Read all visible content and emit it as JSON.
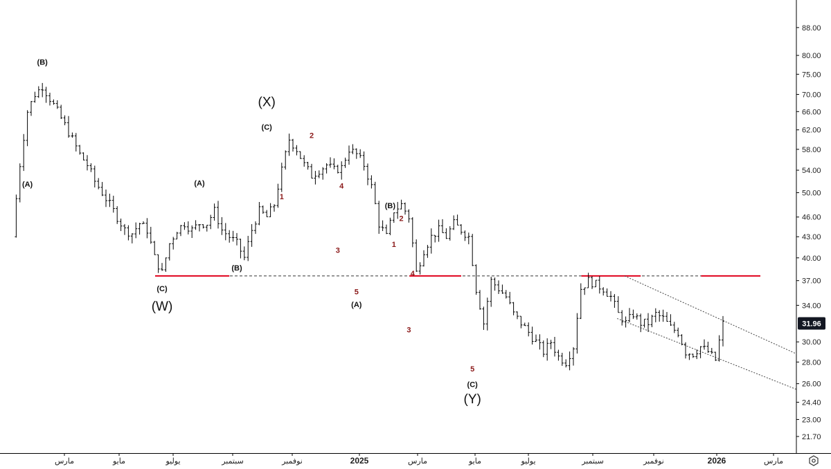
{
  "chart_data": {
    "type": "ohlc",
    "y_scale": "log",
    "ylim": [
      20.5,
      94
    ],
    "y_ticks": [
      "88.00",
      "80.00",
      "75.00",
      "70.00",
      "66.00",
      "62.00",
      "58.00",
      "54.00",
      "50.00",
      "46.00",
      "43.00",
      "40.00",
      "37.00",
      "34.00",
      "30.00",
      "28.00",
      "26.00",
      "24.40",
      "23.00",
      "21.70"
    ],
    "x_ticks": [
      {
        "label": "مارس",
        "bold": false
      },
      {
        "label": "مايو",
        "bold": false
      },
      {
        "label": "يوليو",
        "bold": false
      },
      {
        "label": "سبتمبر",
        "bold": false
      },
      {
        "label": "نوفمبر",
        "bold": false
      },
      {
        "label": "2025",
        "bold": true
      },
      {
        "label": "مارس",
        "bold": false
      },
      {
        "label": "مايو",
        "bold": false
      },
      {
        "label": "يوليو",
        "bold": false
      },
      {
        "label": "سبتمبر",
        "bold": false
      },
      {
        "label": "نوفمبر",
        "bold": false
      },
      {
        "label": "2026",
        "bold": true
      },
      {
        "label": "مارس",
        "bold": false
      }
    ],
    "last_price": "31.96",
    "last_price_color": "#131722",
    "bar_color": "#000000",
    "support_color": "#e0001b",
    "support_level": 37.6,
    "price_path": [
      [
        0,
        43
      ],
      [
        1,
        55
      ],
      [
        2,
        66
      ],
      [
        3,
        70
      ],
      [
        4,
        72
      ],
      [
        5,
        69
      ],
      [
        6,
        66
      ],
      [
        7,
        63
      ],
      [
        8,
        60
      ],
      [
        9,
        57
      ],
      [
        10,
        55
      ],
      [
        11,
        52
      ],
      [
        12,
        50
      ],
      [
        13,
        48
      ],
      [
        14,
        46
      ],
      [
        15,
        44
      ],
      [
        16,
        43.5
      ],
      [
        17,
        45
      ],
      [
        18,
        44
      ],
      [
        19,
        40
      ],
      [
        20,
        38
      ],
      [
        21,
        42
      ],
      [
        22,
        44
      ],
      [
        23,
        45
      ],
      [
        24,
        44
      ],
      [
        25,
        45
      ],
      [
        26,
        45
      ],
      [
        27,
        47
      ],
      [
        28,
        44
      ],
      [
        29,
        43
      ],
      [
        30,
        42
      ],
      [
        31,
        40
      ],
      [
        32,
        44
      ],
      [
        33,
        47
      ],
      [
        34,
        46
      ],
      [
        35,
        48
      ],
      [
        36,
        54
      ],
      [
        37,
        60
      ],
      [
        38,
        58
      ],
      [
        39,
        55
      ],
      [
        40,
        53
      ],
      [
        41,
        54
      ],
      [
        42,
        55
      ],
      [
        43,
        54
      ],
      [
        44,
        54.5
      ],
      [
        45,
        58
      ],
      [
        46,
        57
      ],
      [
        47,
        55
      ],
      [
        48,
        51
      ],
      [
        49,
        45
      ],
      [
        50,
        43
      ],
      [
        51,
        47
      ],
      [
        52,
        48
      ],
      [
        53,
        46
      ],
      [
        54,
        38
      ],
      [
        55,
        41
      ],
      [
        56,
        43
      ],
      [
        57,
        44
      ],
      [
        58,
        43
      ],
      [
        59,
        45
      ],
      [
        60,
        44
      ],
      [
        61,
        43
      ],
      [
        62,
        36
      ],
      [
        63,
        32
      ],
      [
        64,
        37
      ],
      [
        65,
        36
      ],
      [
        66,
        35
      ],
      [
        67,
        33
      ],
      [
        68,
        32
      ],
      [
        69,
        31
      ],
      [
        70,
        30
      ],
      [
        71,
        29
      ],
      [
        72,
        30
      ],
      [
        73,
        28.5
      ],
      [
        74,
        28
      ],
      [
        75,
        29.5
      ],
      [
        76,
        36
      ],
      [
        77,
        37
      ],
      [
        78,
        36.5
      ],
      [
        79,
        36
      ],
      [
        80,
        35
      ],
      [
        81,
        33
      ],
      [
        82,
        32
      ],
      [
        83,
        33
      ],
      [
        84,
        32
      ],
      [
        85,
        32
      ],
      [
        86,
        33
      ],
      [
        87,
        32.5
      ],
      [
        88,
        31.5
      ],
      [
        89,
        31
      ],
      [
        90,
        29
      ],
      [
        91,
        28.8
      ],
      [
        92,
        29.5
      ],
      [
        93,
        29
      ],
      [
        94,
        28.2
      ],
      [
        95,
        31.96
      ]
    ],
    "support_segments": [
      [
        20,
        29,
        37.6
      ],
      [
        54,
        60,
        37.6
      ],
      [
        77,
        84,
        37.6
      ],
      [
        93,
        100,
        37.6
      ]
    ],
    "channel": {
      "upper": [
        [
          80,
          37.6
        ],
        [
          100,
          28.8
        ]
      ],
      "lower": [
        [
          79,
          32.5
        ],
        [
          100,
          25.5
        ]
      ]
    },
    "wave_labels": [
      {
        "text": "(A)",
        "color": "black",
        "i": 2,
        "price": 51
      },
      {
        "text": "(B)",
        "color": "black",
        "i": 4,
        "price": 77.5
      },
      {
        "text": "(C)",
        "color": "black",
        "i": 20,
        "price": 35.7
      },
      {
        "text": "(W)",
        "color": "big",
        "i": 20,
        "price": 33.4
      },
      {
        "text": "(A)",
        "color": "black",
        "i": 25,
        "price": 51.2
      },
      {
        "text": "(B)",
        "color": "black",
        "i": 30,
        "price": 38.3
      },
      {
        "text": "(X)",
        "color": "big",
        "i": 34,
        "price": 67.2
      },
      {
        "text": "(C)",
        "color": "black",
        "i": 34,
        "price": 62
      },
      {
        "text": "1",
        "color": "red",
        "i": 36,
        "price": 48.9
      },
      {
        "text": "2",
        "color": "red",
        "i": 40,
        "price": 60.3
      },
      {
        "text": "3",
        "color": "red",
        "i": 43.5,
        "price": 40.7
      },
      {
        "text": "4",
        "color": "red",
        "i": 44,
        "price": 50.7
      },
      {
        "text": "5",
        "color": "red",
        "i": 46,
        "price": 35.3
      },
      {
        "text": "(A)",
        "color": "black",
        "i": 46,
        "price": 33.8
      },
      {
        "text": "(B)",
        "color": "black",
        "i": 50.5,
        "price": 47.4
      },
      {
        "text": "2",
        "color": "red",
        "i": 52,
        "price": 45.4
      },
      {
        "text": "1",
        "color": "red",
        "i": 51,
        "price": 41.5
      },
      {
        "text": "4",
        "color": "red",
        "i": 53.5,
        "price": 37.6
      },
      {
        "text": "3",
        "color": "red",
        "i": 53,
        "price": 31
      },
      {
        "text": "5",
        "color": "red",
        "i": 61.5,
        "price": 27.1
      },
      {
        "text": "(C)",
        "color": "black",
        "i": 61.5,
        "price": 25.7
      },
      {
        "text": "(Y)",
        "color": "big",
        "i": 61.5,
        "price": 24.3
      }
    ]
  }
}
